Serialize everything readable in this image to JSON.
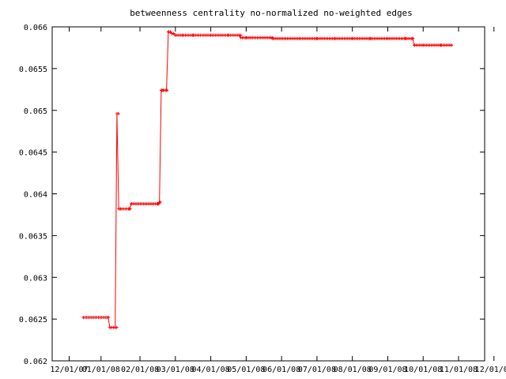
{
  "chart_data": {
    "type": "line",
    "title": "betweenness centrality no-normalized no-weighted edges",
    "xlabel": "",
    "ylabel": "",
    "ylim": [
      0.062,
      0.066
    ],
    "yticks": [
      "0.062",
      "0.0625",
      "0.063",
      "0.0635",
      "0.064",
      "0.0645",
      "0.065",
      "0.0655",
      "0.066"
    ],
    "xlim": [
      0,
      11
    ],
    "xticks": [
      "12/01/07",
      "01/01/08",
      "02/01/08",
      "03/01/08",
      "04/01/08",
      "05/01/08",
      "06/01/08",
      "07/01/08",
      "08/01/08",
      "09/01/08",
      "10/01/08",
      "11/01/08",
      "12/01/08"
    ],
    "x_tick_positions": [
      0,
      0.9,
      2.0,
      3.0,
      4.0,
      5.0,
      6.0,
      7.0,
      8.0,
      9.0,
      10.0,
      11.0,
      12.0
    ],
    "grid": false,
    "colors": {
      "series": "#ff0000",
      "axis": "#000000",
      "background": "#ffffff"
    },
    "series": [
      {
        "marker": "plus",
        "x": [
          0.4,
          1.1,
          1.15,
          1.3,
          1.35,
          1.4,
          1.45,
          1.7,
          1.75,
          2.5,
          2.55,
          2.6,
          2.65,
          2.75,
          2.8,
          2.9,
          3.0,
          3.2,
          3.5,
          4.0,
          4.5,
          4.8,
          4.85,
          5.0,
          5.7,
          5.75,
          6.5,
          7.0,
          7.5,
          8.0,
          8.5,
          9.0,
          9.5,
          9.7,
          9.75,
          10.0,
          10.5,
          10.8
        ],
        "y": [
          0.06252,
          0.06252,
          0.0624,
          0.0624,
          0.06496,
          0.06382,
          0.06382,
          0.06382,
          0.06388,
          0.06388,
          0.0639,
          0.06524,
          0.06524,
          0.06524,
          0.06594,
          0.06592,
          0.0659,
          0.0659,
          0.0659,
          0.0659,
          0.0659,
          0.0659,
          0.06587,
          0.06587,
          0.06587,
          0.06586,
          0.06586,
          0.06586,
          0.06586,
          0.06586,
          0.06586,
          0.06586,
          0.06586,
          0.06586,
          0.06578,
          0.06578,
          0.06578,
          0.06578
        ]
      }
    ]
  }
}
